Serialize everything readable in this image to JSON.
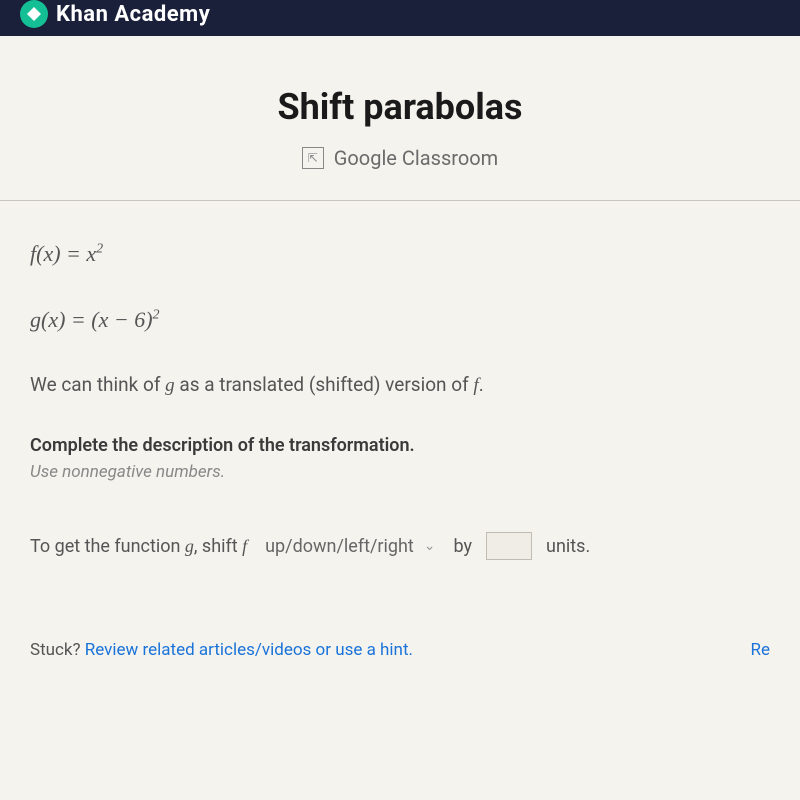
{
  "header": {
    "brand": "Khan Academy"
  },
  "title_section": {
    "title": "Shift parabolas",
    "classroom_label": "Google Classroom",
    "classroom_icon_glyph": "⇱"
  },
  "content": {
    "equation1_html": "f(x) = x²",
    "equation2_html": "g(x) = (x − 6)²",
    "description_prefix": "We can think of ",
    "description_g": "g",
    "description_mid": " as a translated (shifted) version of ",
    "description_f": "f",
    "description_suffix": ".",
    "instruction_bold": "Complete the description of the transformation.",
    "instruction_sub": "Use nonnegative numbers.",
    "answer_prefix": "To get the function ",
    "answer_g": "g",
    "answer_mid1": ", shift ",
    "answer_f": "f",
    "dropdown_label": "up/down/left/right",
    "answer_by": "by",
    "answer_units": "units."
  },
  "footer": {
    "stuck_label": "Stuck? ",
    "stuck_link": "Review related articles/videos or use a hint.",
    "report": "Re"
  }
}
